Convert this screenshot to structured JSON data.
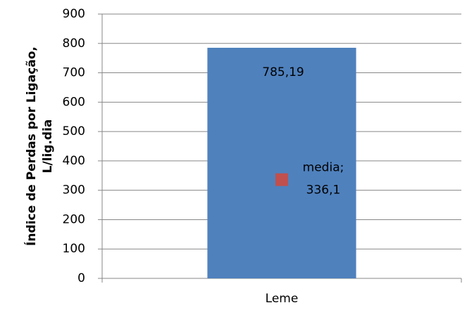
{
  "chart_data": {
    "type": "bar",
    "ylabel": [
      "Índice de Perdas por Ligação,",
      "L/lig.dia"
    ],
    "categories": [
      "Leme"
    ],
    "values": [
      785.19
    ],
    "value_labels": [
      "785,19"
    ],
    "color": "#4f81bd",
    "markers": {
      "values": [
        336.1
      ],
      "value_labels": [
        "media;\n336,1"
      ],
      "color": "#c0504d"
    },
    "ylim": [
      0,
      900
    ],
    "yticks": [
      0,
      100,
      200,
      300,
      400,
      500,
      600,
      700,
      800,
      900
    ],
    "grid": true
  }
}
